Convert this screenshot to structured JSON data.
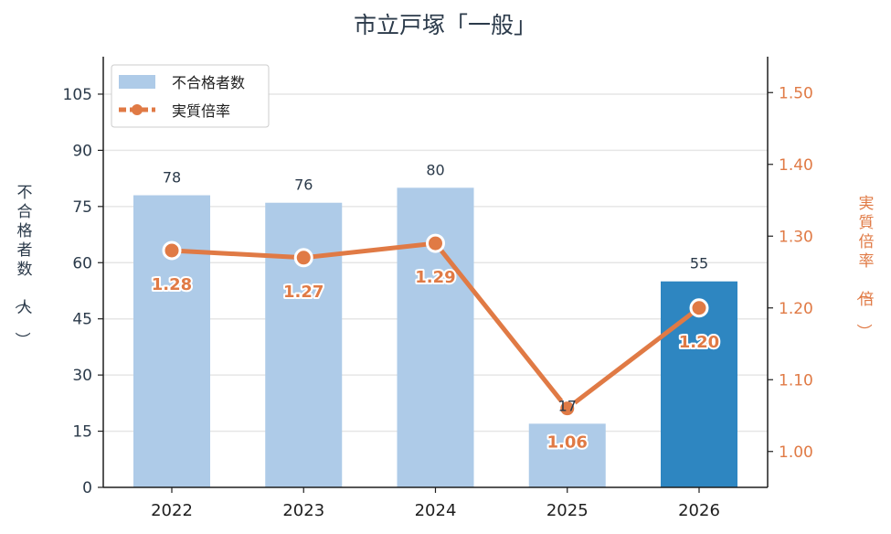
{
  "chart_data": {
    "type": "bar",
    "title": "市立戸塚「一般」",
    "categories": [
      "2022",
      "2023",
      "2024",
      "2025",
      "2026"
    ],
    "series": [
      {
        "name": "不合格者数",
        "type": "bar",
        "axis": "left",
        "values": [
          78,
          76,
          80,
          17,
          55
        ],
        "color": "#aecbe8",
        "highlight_color": "#2e86c1",
        "highlight_index": 4
      },
      {
        "name": "実質倍率",
        "type": "line",
        "axis": "right",
        "values": [
          1.28,
          1.27,
          1.29,
          1.06,
          1.2
        ],
        "color": "#e07a45"
      }
    ],
    "bar_labels": [
      "78",
      "76",
      "80",
      "17",
      "55"
    ],
    "rate_labels": [
      "1.28",
      "1.27",
      "1.29",
      "1.06",
      "1.20"
    ],
    "ylabel_left": "不合格者数（人）",
    "ylabel_right": "実質倍率（倍）",
    "ylim_left": [
      0,
      115
    ],
    "ylim_right": [
      0.95,
      1.55
    ],
    "yticks_left": [
      "0",
      "15",
      "30",
      "45",
      "60",
      "75",
      "90",
      "105"
    ],
    "yticks_right": [
      "1.00",
      "1.10",
      "1.20",
      "1.30",
      "1.40",
      "1.50"
    ],
    "grid": true,
    "legend_position": "top-left"
  }
}
